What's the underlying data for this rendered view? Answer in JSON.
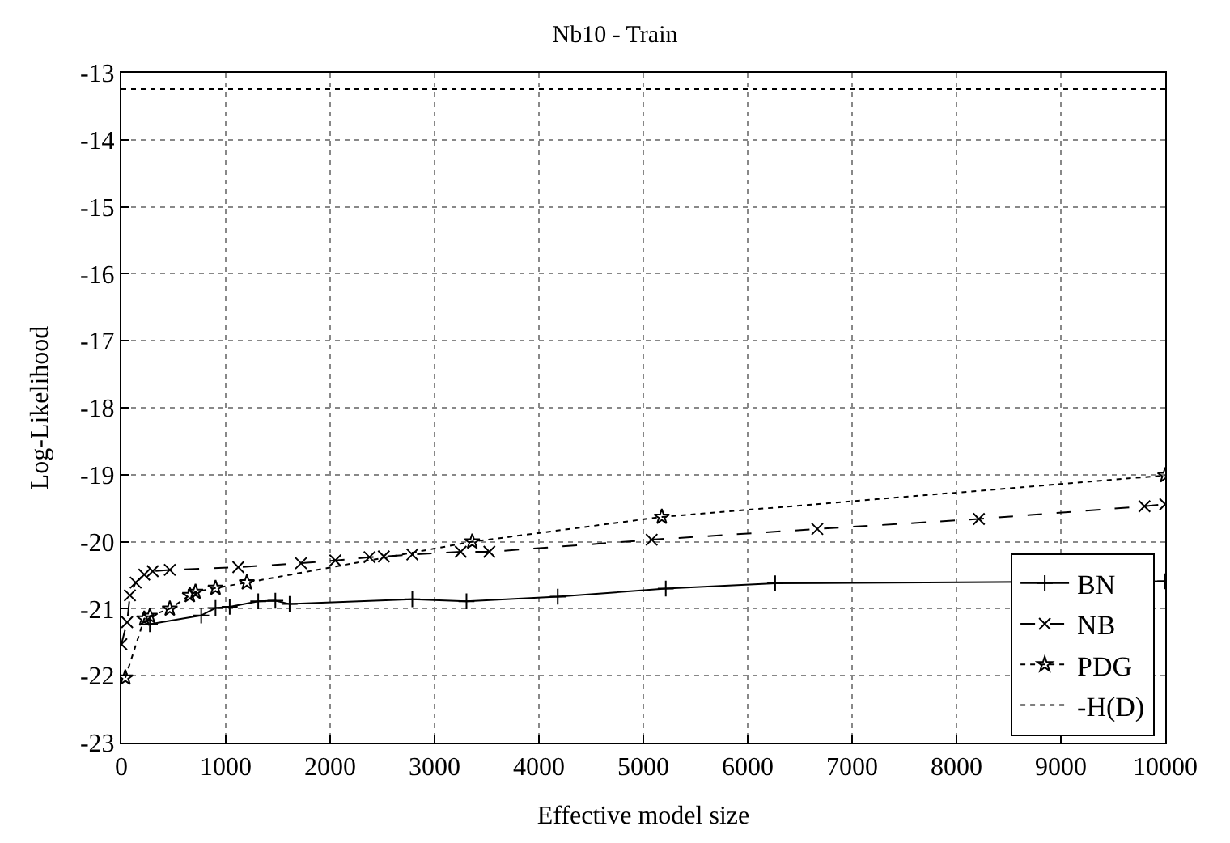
{
  "chart_data": {
    "type": "line",
    "title": "Nb10 - Train",
    "xlabel": "Effective model size",
    "ylabel": "Log-Likelihood",
    "xlim": [
      0,
      10000
    ],
    "xticks": [
      0,
      1000,
      2000,
      3000,
      4000,
      5000,
      6000,
      7000,
      8000,
      9000,
      10000
    ],
    "ylim": [
      -23,
      -13
    ],
    "yticks": [
      -23,
      -22,
      -21,
      -20,
      -19,
      -18,
      -17,
      -16,
      -15,
      -14,
      -13
    ],
    "grid": true,
    "legend": "bottom right",
    "series": [
      {
        "name": "BN",
        "color": "#000000",
        "line_style": "solid",
        "marker": "cross",
        "x": [
          273,
          765,
          902,
          1038,
          1311,
          1475,
          1612,
          2787,
          3306,
          4180,
          5215,
          6263,
          10000
        ],
        "values": [
          -21.23,
          -21.1,
          -20.99,
          -20.97,
          -20.89,
          -20.88,
          -20.93,
          -20.86,
          -20.89,
          -20.82,
          -20.7,
          -20.62,
          -20.59
        ]
      },
      {
        "name": "NB",
        "color": "#000000",
        "line_style": "dashed",
        "marker": "x",
        "x": [
          0,
          55,
          82,
          137,
          219,
          300,
          464,
          1120,
          1721,
          2049,
          2377,
          2514,
          2787,
          3251,
          3525,
          5080,
          6667,
          8215,
          9801,
          10000
        ],
        "values": [
          -21.53,
          -21.2,
          -20.8,
          -20.61,
          -20.49,
          -20.44,
          -20.42,
          -20.38,
          -20.32,
          -20.28,
          -20.23,
          -20.22,
          -20.19,
          -20.15,
          -20.15,
          -19.97,
          -19.81,
          -19.66,
          -19.47,
          -19.44
        ]
      },
      {
        "name": "PDG",
        "color": "#000000",
        "line_style": "dotted",
        "marker": "star",
        "x": [
          38,
          219,
          273,
          464,
          656,
          710,
          902,
          1202,
          3361,
          5177,
          10000
        ],
        "values": [
          -22.03,
          -21.15,
          -21.11,
          -21.0,
          -20.8,
          -20.75,
          -20.69,
          -20.61,
          -20.0,
          -19.63,
          -19.01
        ]
      },
      {
        "name": "-H(D)",
        "color": "#000000",
        "line_style": "dotted",
        "marker": "none",
        "x": [
          0,
          10000
        ],
        "values": [
          -13.24,
          -13.24
        ]
      }
    ]
  }
}
